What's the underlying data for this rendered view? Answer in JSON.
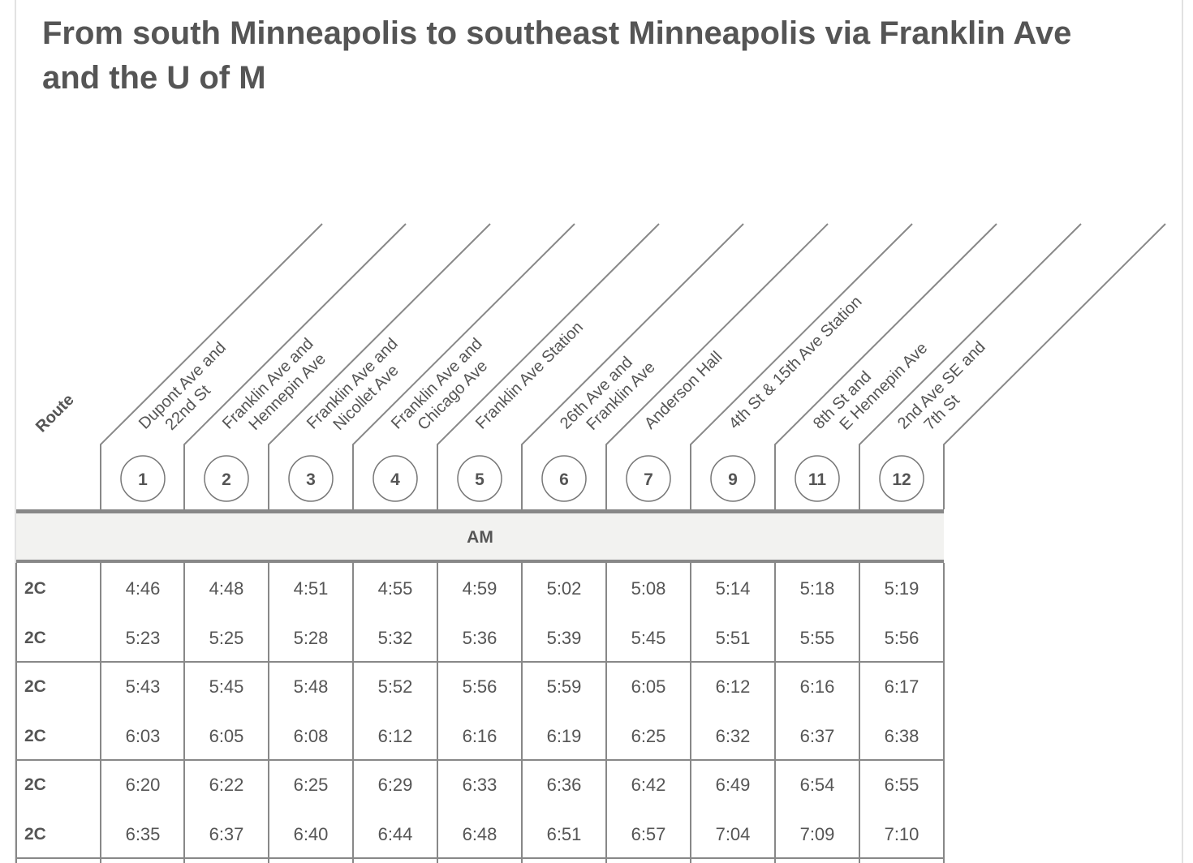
{
  "title": "From south Minneapolis to southeast Minneapolis via Franklin Ave and the U of M",
  "route_header": "Route",
  "stops": [
    {
      "num": "1",
      "lines": [
        "Dupont Ave and",
        "22nd St"
      ]
    },
    {
      "num": "2",
      "lines": [
        "Franklin Ave and",
        "Hennepin Ave"
      ]
    },
    {
      "num": "3",
      "lines": [
        "Franklin Ave and",
        "Nicollet Ave"
      ]
    },
    {
      "num": "4",
      "lines": [
        "Franklin Ave and",
        "Chicago Ave"
      ]
    },
    {
      "num": "5",
      "lines": [
        "Franklin Ave Station"
      ]
    },
    {
      "num": "6",
      "lines": [
        "26th Ave and",
        "Franklin Ave"
      ]
    },
    {
      "num": "7",
      "lines": [
        "Anderson Hall"
      ]
    },
    {
      "num": "9",
      "lines": [
        "4th St & 15th Ave Station"
      ]
    },
    {
      "num": "11",
      "lines": [
        "8th St and",
        "E Hennepin Ave"
      ]
    },
    {
      "num": "12",
      "lines": [
        "2nd Ave SE and",
        "7th St"
      ]
    }
  ],
  "period_label": "AM",
  "trips": [
    {
      "route": "2C",
      "times": [
        "4:46",
        "4:48",
        "4:51",
        "4:55",
        "4:59",
        "5:02",
        "5:08",
        "5:14",
        "5:18",
        "5:19"
      ]
    },
    {
      "route": "2C",
      "times": [
        "5:23",
        "5:25",
        "5:28",
        "5:32",
        "5:36",
        "5:39",
        "5:45",
        "5:51",
        "5:55",
        "5:56"
      ]
    },
    {
      "route": "2C",
      "times": [
        "5:43",
        "5:45",
        "5:48",
        "5:52",
        "5:56",
        "5:59",
        "6:05",
        "6:12",
        "6:16",
        "6:17"
      ]
    },
    {
      "route": "2C",
      "times": [
        "6:03",
        "6:05",
        "6:08",
        "6:12",
        "6:16",
        "6:19",
        "6:25",
        "6:32",
        "6:37",
        "6:38"
      ]
    },
    {
      "route": "2C",
      "times": [
        "6:20",
        "6:22",
        "6:25",
        "6:29",
        "6:33",
        "6:36",
        "6:42",
        "6:49",
        "6:54",
        "6:55"
      ]
    },
    {
      "route": "2C",
      "times": [
        "6:35",
        "6:37",
        "6:40",
        "6:44",
        "6:48",
        "6:51",
        "6:57",
        "7:04",
        "7:09",
        "7:10"
      ]
    }
  ]
}
